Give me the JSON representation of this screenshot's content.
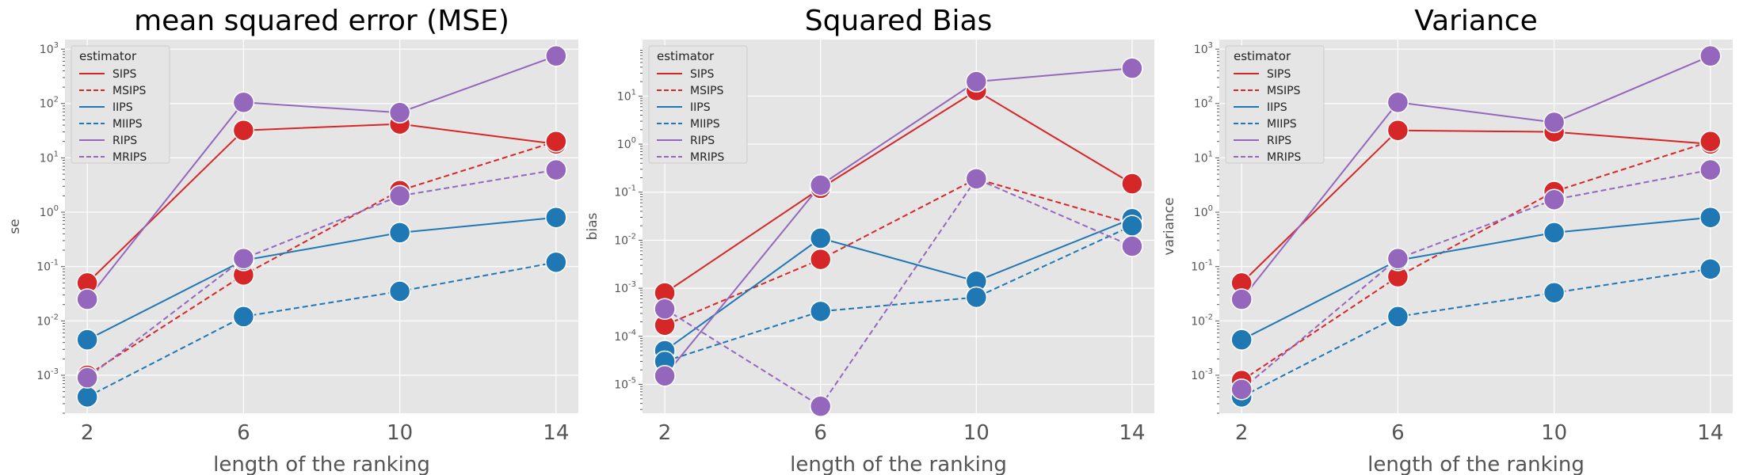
{
  "chart_data": [
    {
      "type": "line",
      "title": "mean squared error (MSE)",
      "xlabel": "length of the ranking",
      "ylabel": "se",
      "yscale": "log",
      "ylim": [
        0.0002,
        1500
      ],
      "ytick_exponents": [
        -3,
        -2,
        -1,
        0,
        1,
        2,
        3
      ],
      "x": [
        2,
        6,
        10,
        14
      ],
      "x_tick_labels": [
        "2",
        "6",
        "10",
        "14"
      ],
      "legend_title": "estimator",
      "series": [
        {
          "name": "SIPS",
          "color": "#d62728",
          "dash": "solid",
          "values": [
            0.05,
            32,
            42,
            18
          ]
        },
        {
          "name": "MSIPS",
          "color": "#d62728",
          "dash": "dashed",
          "values": [
            0.001,
            0.07,
            2.5,
            20
          ]
        },
        {
          "name": "IIPS",
          "color": "#1f77b4",
          "dash": "solid",
          "values": [
            0.0045,
            0.13,
            0.42,
            0.8
          ]
        },
        {
          "name": "MIIPS",
          "color": "#1f77b4",
          "dash": "dashed",
          "values": [
            0.0004,
            0.012,
            0.035,
            0.12
          ]
        },
        {
          "name": "RIPS",
          "color": "#9467bd",
          "dash": "solid",
          "values": [
            0.025,
            105,
            68,
            750
          ]
        },
        {
          "name": "MRIPS",
          "color": "#9467bd",
          "dash": "dashed",
          "values": [
            0.0009,
            0.14,
            2.0,
            6.0
          ]
        }
      ]
    },
    {
      "type": "line",
      "title": "Squared Bias",
      "xlabel": "length of the ranking",
      "ylabel": "bias",
      "yscale": "log",
      "ylim": [
        2.5e-06,
        150
      ],
      "ytick_exponents": [
        -5,
        -4,
        -3,
        -2,
        -1,
        0,
        1
      ],
      "x": [
        2,
        6,
        10,
        14
      ],
      "x_tick_labels": [
        "2",
        "6",
        "10",
        "14"
      ],
      "legend_title": "estimator",
      "series": [
        {
          "name": "SIPS",
          "color": "#d62728",
          "dash": "solid",
          "values": [
            0.0008,
            0.12,
            13,
            0.15
          ]
        },
        {
          "name": "MSIPS",
          "color": "#d62728",
          "dash": "dashed",
          "values": [
            0.00017,
            0.004,
            0.19,
            0.022
          ]
        },
        {
          "name": "IIPS",
          "color": "#1f77b4",
          "dash": "solid",
          "values": [
            5e-05,
            0.011,
            0.0014,
            0.028
          ]
        },
        {
          "name": "MIIPS",
          "color": "#1f77b4",
          "dash": "dashed",
          "values": [
            3e-05,
            0.00033,
            0.00065,
            0.02
          ]
        },
        {
          "name": "RIPS",
          "color": "#9467bd",
          "dash": "solid",
          "values": [
            1.5e-05,
            0.14,
            20,
            38
          ]
        },
        {
          "name": "MRIPS",
          "color": "#9467bd",
          "dash": "dashed",
          "values": [
            0.00037,
            3.5e-06,
            0.19,
            0.0075
          ]
        }
      ]
    },
    {
      "type": "line",
      "title": "Variance",
      "xlabel": "length of the ranking",
      "ylabel": "variance",
      "yscale": "log",
      "ylim": [
        0.0002,
        1500
      ],
      "ytick_exponents": [
        -3,
        -2,
        -1,
        0,
        1,
        2,
        3
      ],
      "x": [
        2,
        6,
        10,
        14
      ],
      "x_tick_labels": [
        "2",
        "6",
        "10",
        "14"
      ],
      "legend_title": "estimator",
      "series": [
        {
          "name": "SIPS",
          "color": "#d62728",
          "dash": "solid",
          "values": [
            0.05,
            32,
            30,
            18
          ]
        },
        {
          "name": "MSIPS",
          "color": "#d62728",
          "dash": "dashed",
          "values": [
            0.0008,
            0.065,
            2.4,
            20
          ]
        },
        {
          "name": "IIPS",
          "color": "#1f77b4",
          "dash": "solid",
          "values": [
            0.0045,
            0.13,
            0.42,
            0.8
          ]
        },
        {
          "name": "MIIPS",
          "color": "#1f77b4",
          "dash": "dashed",
          "values": [
            0.0004,
            0.012,
            0.033,
            0.09
          ]
        },
        {
          "name": "RIPS",
          "color": "#9467bd",
          "dash": "solid",
          "values": [
            0.025,
            105,
            45,
            750
          ]
        },
        {
          "name": "MRIPS",
          "color": "#9467bd",
          "dash": "dashed",
          "values": [
            0.00055,
            0.14,
            1.7,
            6.0
          ]
        }
      ]
    }
  ]
}
